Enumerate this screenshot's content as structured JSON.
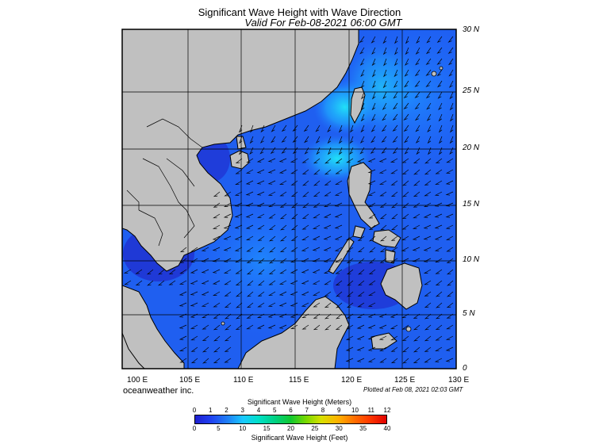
{
  "title": "Significant Wave Height with Wave Direction",
  "subtitle": "Valid For Feb-08-2021 06:00 GMT",
  "lat_labels": [
    "30 N",
    "25 N",
    "20 N",
    "15 N",
    "10 N",
    "5 N",
    "0"
  ],
  "lon_labels": [
    "100 E",
    "105 E",
    "110 E",
    "115 E",
    "120 E",
    "125 E",
    "130 E"
  ],
  "credit": "oceanweather inc.",
  "plotted": "Plotted at Feb 08, 2021 02:03 GMT",
  "legend": {
    "meters_title": "Significant Wave Height (Meters)",
    "feet_title": "Significant Wave Height (Feet)",
    "meters_ticks": [
      "0",
      "1",
      "2",
      "3",
      "4",
      "5",
      "6",
      "7",
      "8",
      "9",
      "10",
      "11",
      "12"
    ],
    "feet_ticks": [
      "0",
      "5",
      "10",
      "15",
      "20",
      "25",
      "30",
      "35",
      "40"
    ]
  },
  "colors": {
    "land": "#c0c0c0",
    "sea_low": "#1f3fe0",
    "sea_mid": "#1f8fff",
    "sea_high": "#20e0f0"
  }
}
